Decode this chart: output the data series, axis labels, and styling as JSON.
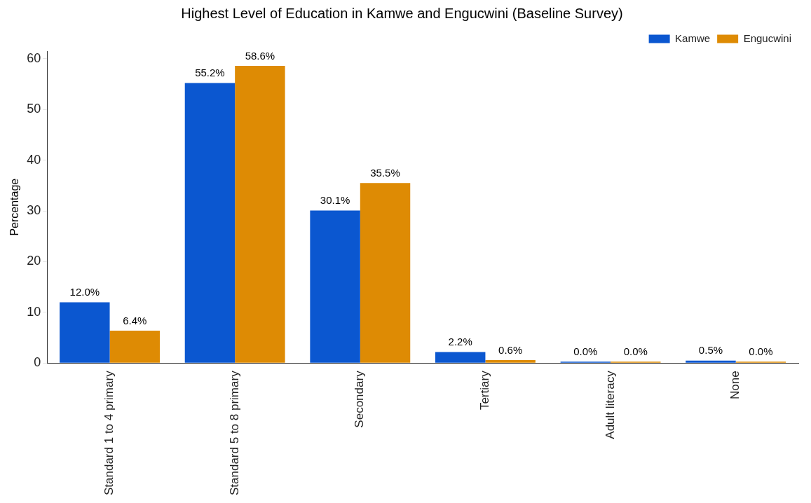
{
  "chart_data": {
    "type": "bar",
    "title": "Highest Level of Education in Kamwe and Engucwini (Baseline Survey)",
    "ylabel": "Percentage",
    "categories": [
      "Standard 1 to 4 primary",
      "Standard 5 to 8 primary",
      "Secondary",
      "Tertiary",
      "Adult literacy",
      "None"
    ],
    "series": [
      {
        "name": "Kamwe",
        "color": "#0b57d0",
        "values": [
          12.0,
          55.2,
          30.1,
          2.2,
          0.0,
          0.5
        ],
        "value_labels": [
          "12.0%",
          "55.2%",
          "30.1%",
          "2.2%",
          "0.0%",
          "0.5%"
        ]
      },
      {
        "name": "Engucwini",
        "color": "#de8b04",
        "values": [
          6.4,
          58.6,
          35.5,
          0.6,
          0.0,
          0.0
        ],
        "value_labels": [
          "6.4%",
          "58.6%",
          "35.5%",
          "0.6%",
          "0.0%",
          "0.0%"
        ]
      }
    ],
    "ylim": [
      0,
      61.5
    ],
    "yticks": [
      0,
      10,
      20,
      30,
      40,
      50,
      60
    ],
    "grid": false,
    "legend": "top right"
  }
}
